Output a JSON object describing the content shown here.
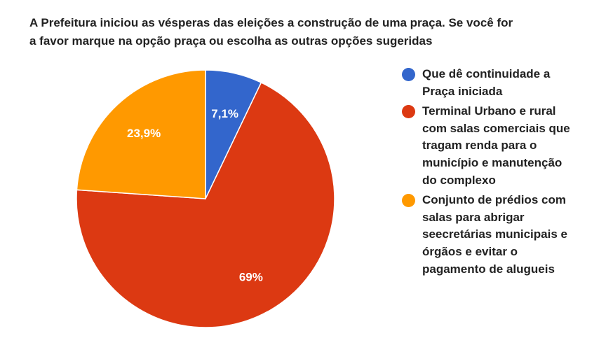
{
  "chart_data": {
    "type": "pie",
    "title_lines": [
      "A Prefeitura iniciou as vésperas das eleições a construção de uma praça. Se você for",
      "a favor marque na opção praça ou escolha as outras opções sugeridas"
    ],
    "slices": [
      {
        "legend_lines": [
          "Que dê continuidade a",
          "Praça iniciada"
        ],
        "value": 7.1,
        "label": "7,1%",
        "color": "#3366cc"
      },
      {
        "legend_lines": [
          "Terminal Urbano e rural",
          "com salas comerciais que",
          "tragam renda para o",
          "município e manutenção",
          "do complexo"
        ],
        "value": 69,
        "label": "69%",
        "color": "#dc3912"
      },
      {
        "legend_lines": [
          "Conjunto de prédios com",
          "salas para abrigar",
          "seecretárias municipais e",
          "órgãos e evitar o",
          "pagamento de alugueis"
        ],
        "value": 23.9,
        "label": "23,9%",
        "color": "#ff9900"
      }
    ],
    "legend_position": "right"
  }
}
